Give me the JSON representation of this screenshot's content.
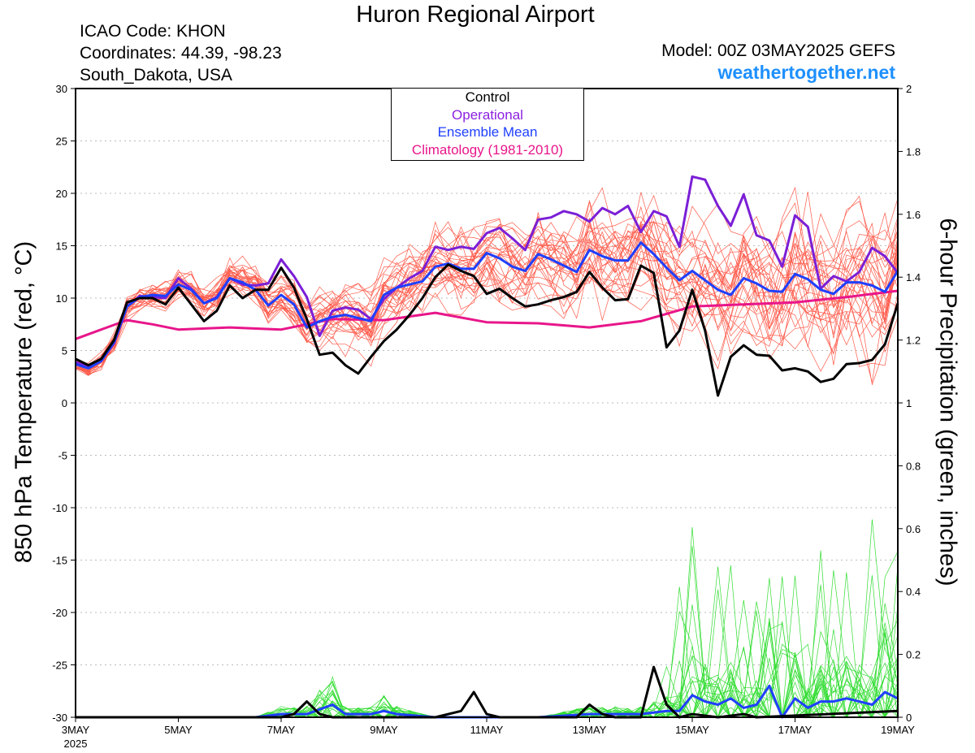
{
  "header": {
    "title": "Huron Regional Airport",
    "icao": "ICAO Code: KHON",
    "coords": "Coordinates: 44.39, -98.23",
    "location": "South_Dakota, USA",
    "model": "Model: 00Z 03MAY2025 GEFS",
    "site": "weathertogether.net"
  },
  "colors": {
    "control": "#000000",
    "operational": "#7b1fd6",
    "mean": "#1f3fff",
    "climatology": "#e8168a",
    "members_temp": "#ff5a4a",
    "members_precip": "#33dd33",
    "site": "#1e90ff"
  },
  "chart_data": {
    "type": "line",
    "title": "Huron Regional Airport",
    "ylabel": "850 hPa Temperature (red, °C)",
    "y2label": "6-hour Precipitation (green, inches)",
    "ylim": [
      -30,
      30
    ],
    "y2lim": [
      0,
      2
    ],
    "xlim": [
      0,
      16
    ],
    "x_unit": "days since 3MAY 2025 00Z",
    "x_ticks": [
      {
        "v": 0,
        "label": "3MAY",
        "sub": "2025"
      },
      {
        "v": 2,
        "label": "5MAY"
      },
      {
        "v": 4,
        "label": "7MAY"
      },
      {
        "v": 6,
        "label": "9MAY"
      },
      {
        "v": 8,
        "label": "11MAY"
      },
      {
        "v": 10,
        "label": "13MAY"
      },
      {
        "v": 12,
        "label": "15MAY"
      },
      {
        "v": 14,
        "label": "17MAY"
      },
      {
        "v": 16,
        "label": "19MAY"
      }
    ],
    "y_ticks": [
      30,
      25,
      20,
      15,
      10,
      5,
      0,
      -5,
      -10,
      -15,
      -20,
      -25,
      -30
    ],
    "y2_ticks": [
      "2",
      "1.8",
      "1.6",
      "1.4",
      "1.2",
      "1",
      "0.8",
      "0.6",
      "0.4",
      "0.2",
      "0"
    ],
    "grid": true,
    "legend": [
      "Control",
      "Operational",
      "Ensemble Mean",
      "Climatology (1981-2010)"
    ],
    "legend_position": "top-center",
    "series": [
      {
        "name": "Control",
        "axis": "temp",
        "points": [
          [
            0,
            4.2
          ],
          [
            0.25,
            3.6
          ],
          [
            0.5,
            4.2
          ],
          [
            0.75,
            6
          ],
          [
            1,
            9.6
          ],
          [
            1.25,
            10
          ],
          [
            1.5,
            10
          ],
          [
            1.75,
            9.4
          ],
          [
            2,
            11
          ],
          [
            2.25,
            9.4
          ],
          [
            2.5,
            7.8
          ],
          [
            2.75,
            8.8
          ],
          [
            3,
            11.2
          ],
          [
            3.25,
            10
          ],
          [
            3.5,
            10.8
          ],
          [
            3.75,
            10.8
          ],
          [
            4,
            12.9
          ],
          [
            4.25,
            11
          ],
          [
            4.5,
            8
          ],
          [
            4.75,
            4.6
          ],
          [
            5,
            4.8
          ],
          [
            5.25,
            3.6
          ],
          [
            5.5,
            2.8
          ],
          [
            5.75,
            4.4
          ],
          [
            6,
            5.9
          ],
          [
            6.25,
            7
          ],
          [
            6.5,
            8.4
          ],
          [
            6.75,
            10
          ],
          [
            7,
            12
          ],
          [
            7.25,
            13.2
          ],
          [
            7.5,
            12.6
          ],
          [
            7.75,
            12.1
          ],
          [
            8,
            10.4
          ],
          [
            8.25,
            10.9
          ],
          [
            8.5,
            10
          ],
          [
            8.75,
            9.2
          ],
          [
            9,
            9.4
          ],
          [
            9.25,
            9.8
          ],
          [
            9.5,
            10.1
          ],
          [
            9.75,
            10.6
          ],
          [
            10,
            12.5
          ],
          [
            10.25,
            11
          ],
          [
            10.5,
            9.8
          ],
          [
            10.75,
            9.9
          ],
          [
            11,
            13.1
          ],
          [
            11.25,
            12.4
          ],
          [
            11.5,
            5.3
          ],
          [
            11.75,
            6.9
          ],
          [
            12,
            10.8
          ],
          [
            12.25,
            6.9
          ],
          [
            12.5,
            0.7
          ],
          [
            12.75,
            4.4
          ],
          [
            13,
            5.5
          ],
          [
            13.25,
            4.6
          ],
          [
            13.5,
            4.5
          ],
          [
            13.75,
            3.1
          ],
          [
            14,
            3.3
          ],
          [
            14.25,
            3
          ],
          [
            14.5,
            2
          ],
          [
            14.75,
            2.3
          ],
          [
            15,
            3.7
          ],
          [
            15.25,
            3.8
          ],
          [
            15.5,
            4.1
          ],
          [
            15.75,
            5.6
          ],
          [
            16,
            9.5
          ]
        ]
      },
      {
        "name": "Operational",
        "axis": "temp",
        "points": [
          [
            0,
            3.9
          ],
          [
            0.25,
            3.4
          ],
          [
            0.5,
            4
          ],
          [
            0.75,
            5.7
          ],
          [
            1,
            9.2
          ],
          [
            1.25,
            10.2
          ],
          [
            1.5,
            10.1
          ],
          [
            1.75,
            10
          ],
          [
            2,
            11.9
          ],
          [
            2.25,
            10.9
          ],
          [
            2.5,
            9.5
          ],
          [
            2.75,
            10.1
          ],
          [
            3,
            11.9
          ],
          [
            3.25,
            11.3
          ],
          [
            3.5,
            11.2
          ],
          [
            3.75,
            11.4
          ],
          [
            4,
            13.7
          ],
          [
            4.25,
            12.1
          ],
          [
            4.5,
            10.1
          ],
          [
            4.75,
            6.4
          ],
          [
            5,
            8.8
          ],
          [
            5.25,
            9.1
          ],
          [
            5.5,
            8.9
          ],
          [
            5.75,
            8
          ],
          [
            6,
            9.9
          ],
          [
            6.25,
            11
          ],
          [
            6.5,
            11.9
          ],
          [
            6.75,
            12.6
          ],
          [
            7,
            14.9
          ],
          [
            7.25,
            14.6
          ],
          [
            7.5,
            14.9
          ],
          [
            7.75,
            14.7
          ],
          [
            8,
            16.2
          ],
          [
            8.25,
            16.7
          ],
          [
            8.5,
            15.7
          ],
          [
            8.75,
            14.6
          ],
          [
            9,
            17.5
          ],
          [
            9.25,
            17.7
          ],
          [
            9.5,
            18.3
          ],
          [
            9.75,
            18
          ],
          [
            10,
            17.3
          ],
          [
            10.25,
            18.6
          ],
          [
            10.5,
            18
          ],
          [
            10.75,
            18.8
          ],
          [
            11,
            16.3
          ],
          [
            11.25,
            18.3
          ],
          [
            11.5,
            17.8
          ],
          [
            11.75,
            14.9
          ],
          [
            12,
            21.6
          ],
          [
            12.25,
            21.3
          ],
          [
            12.5,
            18.8
          ],
          [
            12.75,
            16.9
          ],
          [
            13,
            19.9
          ],
          [
            13.25,
            16
          ],
          [
            13.5,
            15.5
          ],
          [
            13.75,
            13
          ],
          [
            14,
            17.9
          ],
          [
            14.25,
            16.8
          ],
          [
            14.5,
            10.9
          ],
          [
            14.75,
            12.1
          ],
          [
            15,
            11.6
          ],
          [
            15.25,
            12.5
          ],
          [
            15.5,
            14.8
          ],
          [
            15.75,
            14
          ],
          [
            16,
            12.4
          ]
        ]
      },
      {
        "name": "Ensemble Mean",
        "axis": "temp",
        "points": [
          [
            0,
            3.7
          ],
          [
            0.25,
            3.3
          ],
          [
            0.5,
            4
          ],
          [
            0.75,
            5.8
          ],
          [
            1,
            9.2
          ],
          [
            1.25,
            10.1
          ],
          [
            1.5,
            10.3
          ],
          [
            1.75,
            10.2
          ],
          [
            2,
            11.3
          ],
          [
            2.25,
            10.8
          ],
          [
            2.5,
            9.5
          ],
          [
            2.75,
            10
          ],
          [
            3,
            11.9
          ],
          [
            3.25,
            11.5
          ],
          [
            3.5,
            10.8
          ],
          [
            3.75,
            9.3
          ],
          [
            4,
            10.3
          ],
          [
            4.25,
            9.4
          ],
          [
            4.5,
            7.2
          ],
          [
            4.75,
            7.8
          ],
          [
            5,
            8.2
          ],
          [
            5.25,
            8.4
          ],
          [
            5.5,
            8.1
          ],
          [
            5.75,
            7.8
          ],
          [
            6,
            10.3
          ],
          [
            6.25,
            11
          ],
          [
            6.5,
            11.3
          ],
          [
            6.75,
            11.6
          ],
          [
            7,
            13
          ],
          [
            7.25,
            13.3
          ],
          [
            7.5,
            12.8
          ],
          [
            7.75,
            12.8
          ],
          [
            8,
            14.3
          ],
          [
            8.25,
            13.8
          ],
          [
            8.5,
            13
          ],
          [
            8.75,
            12.6
          ],
          [
            9,
            14.2
          ],
          [
            9.25,
            13.7
          ],
          [
            9.5,
            13.1
          ],
          [
            9.75,
            12.5
          ],
          [
            10,
            14.6
          ],
          [
            10.25,
            14
          ],
          [
            10.5,
            13.6
          ],
          [
            10.75,
            13.6
          ],
          [
            11,
            15.3
          ],
          [
            11.25,
            14.2
          ],
          [
            11.5,
            12.9
          ],
          [
            11.75,
            11.7
          ],
          [
            12,
            12.6
          ],
          [
            12.25,
            11.7
          ],
          [
            12.5,
            10.8
          ],
          [
            12.75,
            10.3
          ],
          [
            13,
            11.9
          ],
          [
            13.25,
            11.4
          ],
          [
            13.5,
            10.7
          ],
          [
            13.75,
            10.6
          ],
          [
            14,
            12.3
          ],
          [
            14.25,
            11.8
          ],
          [
            14.5,
            10.8
          ],
          [
            14.75,
            10.4
          ],
          [
            15,
            11.5
          ],
          [
            15.25,
            11.5
          ],
          [
            15.5,
            11.2
          ],
          [
            15.75,
            10.6
          ],
          [
            16,
            12.6
          ]
        ]
      },
      {
        "name": "Climatology (1981-2010)",
        "axis": "temp",
        "points": [
          [
            0,
            6.1
          ],
          [
            0.5,
            7
          ],
          [
            1,
            7.9
          ],
          [
            1.5,
            7.5
          ],
          [
            2,
            7
          ],
          [
            3,
            7.2
          ],
          [
            4,
            7
          ],
          [
            5,
            8
          ],
          [
            6,
            7.9
          ],
          [
            7,
            8.6
          ],
          [
            8,
            7.7
          ],
          [
            9,
            7.6
          ],
          [
            10,
            7.2
          ],
          [
            11,
            7.8
          ],
          [
            12,
            9.2
          ],
          [
            13,
            9.4
          ],
          [
            14,
            9.6
          ],
          [
            15,
            10.1
          ],
          [
            16,
            10.7
          ]
        ]
      },
      {
        "name": "Control precip",
        "axis": "precip",
        "points": [
          [
            0,
            0
          ],
          [
            4,
            0
          ],
          [
            4.25,
            0.01
          ],
          [
            4.5,
            0.05
          ],
          [
            4.75,
            0.01
          ],
          [
            5,
            0
          ],
          [
            7,
            0
          ],
          [
            7.5,
            0.02
          ],
          [
            7.75,
            0.08
          ],
          [
            8,
            0.01
          ],
          [
            8.25,
            0
          ],
          [
            9.75,
            0
          ],
          [
            10,
            0.04
          ],
          [
            10.25,
            0.01
          ],
          [
            10.5,
            0
          ],
          [
            11,
            0
          ],
          [
            11.25,
            0.16
          ],
          [
            11.5,
            0.04
          ],
          [
            11.75,
            0
          ],
          [
            12,
            0.01
          ],
          [
            12.5,
            0
          ],
          [
            13,
            0.01
          ],
          [
            13.25,
            0
          ],
          [
            16,
            0.02
          ]
        ]
      },
      {
        "name": "Mean precip",
        "axis": "precip",
        "points": [
          [
            0,
            0
          ],
          [
            3.5,
            0
          ],
          [
            4,
            0.01
          ],
          [
            4.5,
            0.01
          ],
          [
            5,
            0.04
          ],
          [
            5.25,
            0.01
          ],
          [
            5.75,
            0.01
          ],
          [
            6,
            0.02
          ],
          [
            6.25,
            0.01
          ],
          [
            7,
            0
          ],
          [
            8,
            0
          ],
          [
            9,
            0
          ],
          [
            10,
            0.01
          ],
          [
            11,
            0.01
          ],
          [
            11.5,
            0.02
          ],
          [
            11.75,
            0.02
          ],
          [
            12,
            0.07
          ],
          [
            12.25,
            0.05
          ],
          [
            12.5,
            0.04
          ],
          [
            12.75,
            0.06
          ],
          [
            13,
            0.03
          ],
          [
            13.25,
            0.04
          ],
          [
            13.5,
            0.1
          ],
          [
            13.75,
            0
          ],
          [
            14,
            0.06
          ],
          [
            14.25,
            0.03
          ],
          [
            14.5,
            0.05
          ],
          [
            14.75,
            0.05
          ],
          [
            15,
            0.06
          ],
          [
            15.25,
            0.05
          ],
          [
            15.5,
            0.04
          ],
          [
            15.75,
            0.08
          ],
          [
            16,
            0.06
          ]
        ]
      }
    ]
  }
}
